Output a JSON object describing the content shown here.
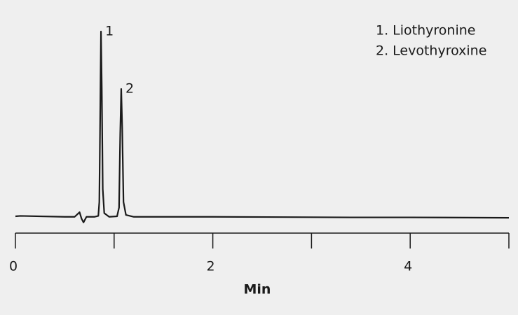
{
  "chart_data": {
    "type": "line",
    "x_label": "Min",
    "legend_text": [
      "1. Liothyronine",
      "2. Levothyroxine"
    ],
    "annotations": [
      {
        "text": "1",
        "x": 0.867,
        "y": 100
      },
      {
        "text": "2",
        "x": 1.072,
        "y": 69
      }
    ],
    "series": [
      {
        "color": "#1a1a1a",
        "x": [
          0,
          0.05,
          0.5,
          0.6,
          0.63,
          0.65,
          0.67,
          0.69,
          0.72,
          0.8,
          0.84,
          0.85,
          0.86,
          0.867,
          0.875,
          0.885,
          0.9,
          0.95,
          1.03,
          1.05,
          1.062,
          1.072,
          1.082,
          1.095,
          1.12,
          1.2,
          2,
          3,
          3.4,
          4,
          5
        ],
        "values": [
          0.3,
          0.5,
          0,
          0,
          1.5,
          2.5,
          -1,
          -3,
          0,
          0,
          0.5,
          8,
          60,
          100,
          70,
          15,
          2,
          0,
          0.3,
          5,
          45,
          69,
          48,
          8,
          1,
          0,
          0,
          -0.2,
          -0.3,
          -0.3,
          -0.5
        ]
      }
    ],
    "xlim": [
      0,
      5
    ],
    "xticks": [
      0,
      2,
      4
    ],
    "xminorticks": [
      1,
      3,
      5
    ],
    "ylim": [
      -5,
      100
    ]
  }
}
